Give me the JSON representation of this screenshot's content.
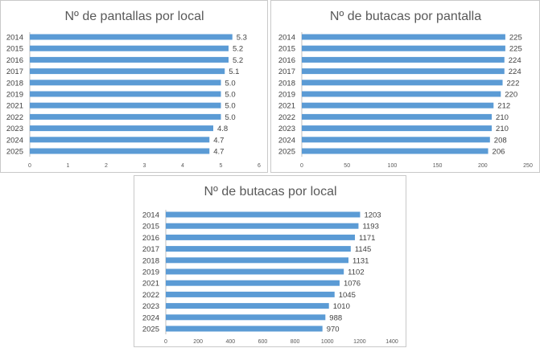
{
  "colors": {
    "bar": "#5b9bd5",
    "text": "#404040",
    "title": "#595959",
    "axis": "#bfbfbf",
    "border": "#c9c9c9"
  },
  "chart_data": [
    {
      "type": "bar",
      "orientation": "horizontal",
      "title": "Nº de pantallas por local",
      "categories": [
        "2014",
        "2015",
        "2016",
        "2017",
        "2018",
        "2019",
        "2021",
        "2022",
        "2023",
        "2024",
        "2025"
      ],
      "values": [
        5.3,
        5.2,
        5.2,
        5.1,
        5.0,
        5.0,
        5.0,
        5.0,
        4.8,
        4.7,
        4.7
      ],
      "value_labels": [
        "5.3",
        "5.2",
        "5.2",
        "5.1",
        "5.0",
        "5.0",
        "5.0",
        "5.0",
        "4.8",
        "4.7",
        "4.7"
      ],
      "xlim": [
        0,
        6
      ],
      "ticks": [
        0,
        1,
        2,
        3,
        4,
        5,
        6
      ],
      "grid": false,
      "legend": "none"
    },
    {
      "type": "bar",
      "orientation": "horizontal",
      "title": "Nº de butacas por pantalla",
      "categories": [
        "2014",
        "2015",
        "2016",
        "2017",
        "2018",
        "2019",
        "2021",
        "2022",
        "2023",
        "2024",
        "2025"
      ],
      "values": [
        225,
        225,
        224,
        224,
        222,
        220,
        212,
        210,
        210,
        208,
        206
      ],
      "value_labels": [
        "225",
        "225",
        "224",
        "224",
        "222",
        "220",
        "212",
        "210",
        "210",
        "208",
        "206"
      ],
      "xlim": [
        0,
        250
      ],
      "ticks": [
        0,
        50,
        100,
        150,
        200,
        250
      ],
      "grid": false,
      "legend": "none"
    },
    {
      "type": "bar",
      "orientation": "horizontal",
      "title": "Nº de butacas por local",
      "categories": [
        "2014",
        "2015",
        "2016",
        "2017",
        "2018",
        "2019",
        "2021",
        "2022",
        "2023",
        "2024",
        "2025"
      ],
      "values": [
        1203,
        1193,
        1171,
        1145,
        1131,
        1102,
        1076,
        1045,
        1010,
        988,
        970
      ],
      "value_labels": [
        "1203",
        "1193",
        "1171",
        "1145",
        "1131",
        "1102",
        "1076",
        "1045",
        "1010",
        "988",
        "970"
      ],
      "xlim": [
        0,
        1400
      ],
      "ticks": [
        0,
        200,
        400,
        600,
        800,
        1000,
        1200,
        1400
      ],
      "grid": false,
      "legend": "none"
    }
  ]
}
